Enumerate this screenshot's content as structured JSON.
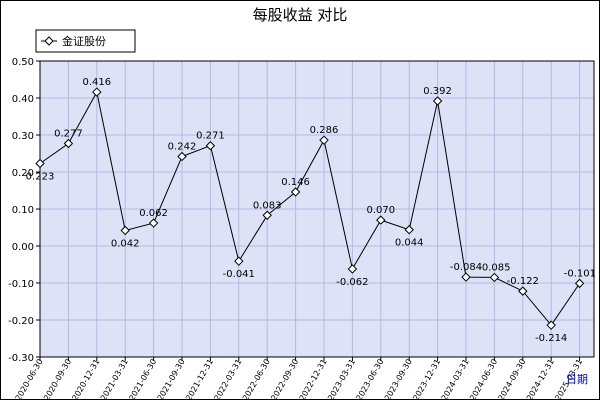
{
  "chart_data": {
    "type": "line",
    "title": "每股收益  对比",
    "xlabel": "日期",
    "ylabel": "",
    "ylim": [
      -0.3,
      0.5
    ],
    "yticks": [
      "0.50",
      "0.40",
      "0.30",
      "0.20",
      "0.10",
      "0.00",
      "-0.10",
      "-0.20",
      "-0.30"
    ],
    "ytick_values": [
      0.5,
      0.4,
      0.3,
      0.2,
      0.1,
      0.0,
      -0.1,
      -0.2,
      -0.3
    ],
    "grid": true,
    "legend_position": "top-left",
    "categories": [
      "2020-06-30",
      "2020-09-30",
      "2020-12-31",
      "2021-03-31",
      "2021-06-30",
      "2021-09-30",
      "2021-12-31",
      "2022-03-31",
      "2022-06-30",
      "2022-09-30",
      "2022-12-31",
      "2023-03-31",
      "2023-06-30",
      "2023-09-30",
      "2023-12-31",
      "2024-03-31",
      "2024-06-30",
      "2024-09-30",
      "2024-12-31",
      "2025-03-31"
    ],
    "series": [
      {
        "name": "金证股份",
        "values": [
          0.223,
          0.277,
          0.416,
          0.042,
          0.062,
          0.242,
          0.271,
          -0.041,
          0.083,
          0.146,
          0.286,
          -0.062,
          0.07,
          0.044,
          0.392,
          -0.084,
          -0.085,
          -0.122,
          -0.214,
          -0.101
        ],
        "labels": [
          "0.223",
          "0.277",
          "0.416",
          "0.042",
          "0.062",
          "0.242",
          "0.271",
          "-0.041",
          "0.083",
          "0.146",
          "0.286",
          "-0.062",
          "0.070",
          "0.044",
          "0.392",
          "-0.084",
          "-0.085",
          "-0.122",
          "-0.214",
          "-0.101"
        ]
      }
    ],
    "colors": {
      "plot_bg": "#dde2f7",
      "grid": "#b4b9e6",
      "line": "#000000",
      "xlabel": "#0000cc"
    }
  }
}
